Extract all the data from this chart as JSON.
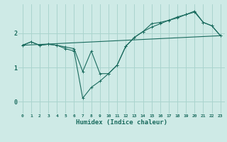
{
  "xlabel": "Humidex (Indice chaleur)",
  "background_color": "#ceeae6",
  "grid_color": "#aad4ce",
  "line_color": "#1a6b5e",
  "x_ticks": [
    0,
    1,
    2,
    3,
    4,
    5,
    6,
    7,
    8,
    9,
    10,
    11,
    12,
    13,
    14,
    15,
    16,
    17,
    18,
    19,
    20,
    21,
    22,
    23
  ],
  "y_ticks": [
    0,
    1,
    2
  ],
  "ylim": [
    -0.35,
    2.85
  ],
  "xlim": [
    -0.5,
    23.5
  ],
  "curve1_x": [
    0,
    1,
    2,
    3,
    4,
    5,
    6,
    7,
    8,
    9,
    10,
    11,
    12,
    13,
    14,
    15,
    16,
    17,
    18,
    19,
    20,
    21,
    22,
    23
  ],
  "curve1_y": [
    1.65,
    1.75,
    1.65,
    1.68,
    1.65,
    1.6,
    1.55,
    0.88,
    1.48,
    0.82,
    0.82,
    1.07,
    1.62,
    1.88,
    2.05,
    2.18,
    2.28,
    2.38,
    2.48,
    2.55,
    2.65,
    2.32,
    2.22,
    1.93
  ],
  "curve2_x": [
    0,
    1,
    2,
    3,
    4,
    5,
    6,
    7,
    8,
    9,
    10,
    11,
    12,
    13,
    14,
    15,
    16,
    17,
    18,
    19,
    20,
    21,
    22,
    23
  ],
  "curve2_y": [
    1.65,
    1.75,
    1.65,
    1.68,
    1.65,
    1.55,
    1.48,
    0.1,
    0.42,
    0.6,
    0.82,
    1.07,
    1.62,
    1.88,
    2.05,
    2.28,
    2.32,
    2.38,
    2.45,
    2.55,
    2.62,
    2.32,
    2.22,
    1.93
  ],
  "curve3_x": [
    0,
    23
  ],
  "curve3_y": [
    1.65,
    1.93
  ]
}
